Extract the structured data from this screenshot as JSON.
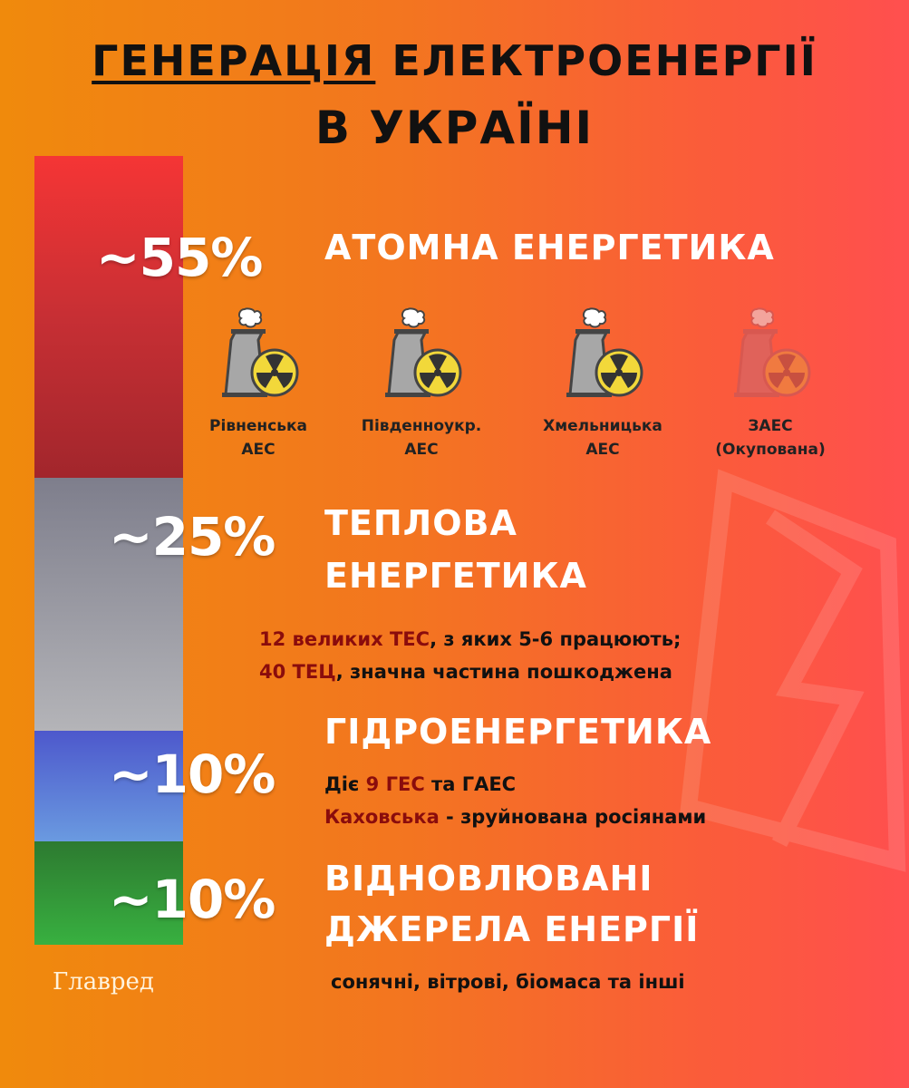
{
  "title": {
    "line1_underlined": "ГЕНЕРАЦІЯ",
    "line1_rest": "ЕЛЕКТРОЕНЕРГІЇ",
    "line2": "В УКРАЇНІ"
  },
  "colors": {
    "nuclear": "#c42a30",
    "thermal": "#8c8c96",
    "hydro": "#5a6cd0",
    "renewable": "#2f9a3a",
    "accent_dark_red": "#8a0c0c"
  },
  "chart_data": {
    "type": "bar",
    "stacked": true,
    "categories": [
      "АТОМНА ЕНЕРГЕТИКА",
      "ТЕПЛОВА ЕНЕРГЕТИКА",
      "ГІДРОЕНЕРГЕТИКА",
      "ВІДНОВЛЮВАНІ ДЖЕРЕЛА ЕНЕРГІЇ"
    ],
    "values": [
      55,
      25,
      10,
      10
    ],
    "data_labels": [
      "~55%",
      "~25%",
      "~10%",
      "~10%"
    ]
  },
  "nuclear": {
    "heading": "АТОМНА ЕНЕРГЕТИКА",
    "plants": [
      {
        "line1": "Рівненська",
        "line2": "АЕС",
        "icon": "nuclear-plant-icon"
      },
      {
        "line1": "Південноукр.",
        "line2": "АЕС",
        "icon": "nuclear-plant-icon"
      },
      {
        "line1": "Хмельницька",
        "line2": "АЕС",
        "icon": "nuclear-plant-icon"
      },
      {
        "line1": "ЗАЕС",
        "line2": "(Окупована)",
        "icon": "nuclear-plant-icon-faded"
      }
    ]
  },
  "thermal": {
    "heading1": "ТЕПЛОВА",
    "heading2": "ЕНЕРГЕТИКА",
    "l1a": "12 великих ТЕС",
    "l1b": ", з яких 5-6 працюють;",
    "l2a": "40 ТЕЦ",
    "l2b": ", значна частина пошкоджена"
  },
  "hydro": {
    "heading": "ГІДРОЕНЕРГЕТИКА",
    "l1a": "Діє ",
    "l1b": "9 ГЕС",
    "l1c": " та ГАЕС",
    "l2a": "Каховська",
    "l2b": " - зруйнована росіянами"
  },
  "renewable": {
    "heading1": "ВІДНОВЛЮВАНІ",
    "heading2": "ДЖЕРЕЛА ЕНЕРГІЇ",
    "sub": "сонячні, вітрові, біомаса та інші"
  },
  "logo": "Главред"
}
